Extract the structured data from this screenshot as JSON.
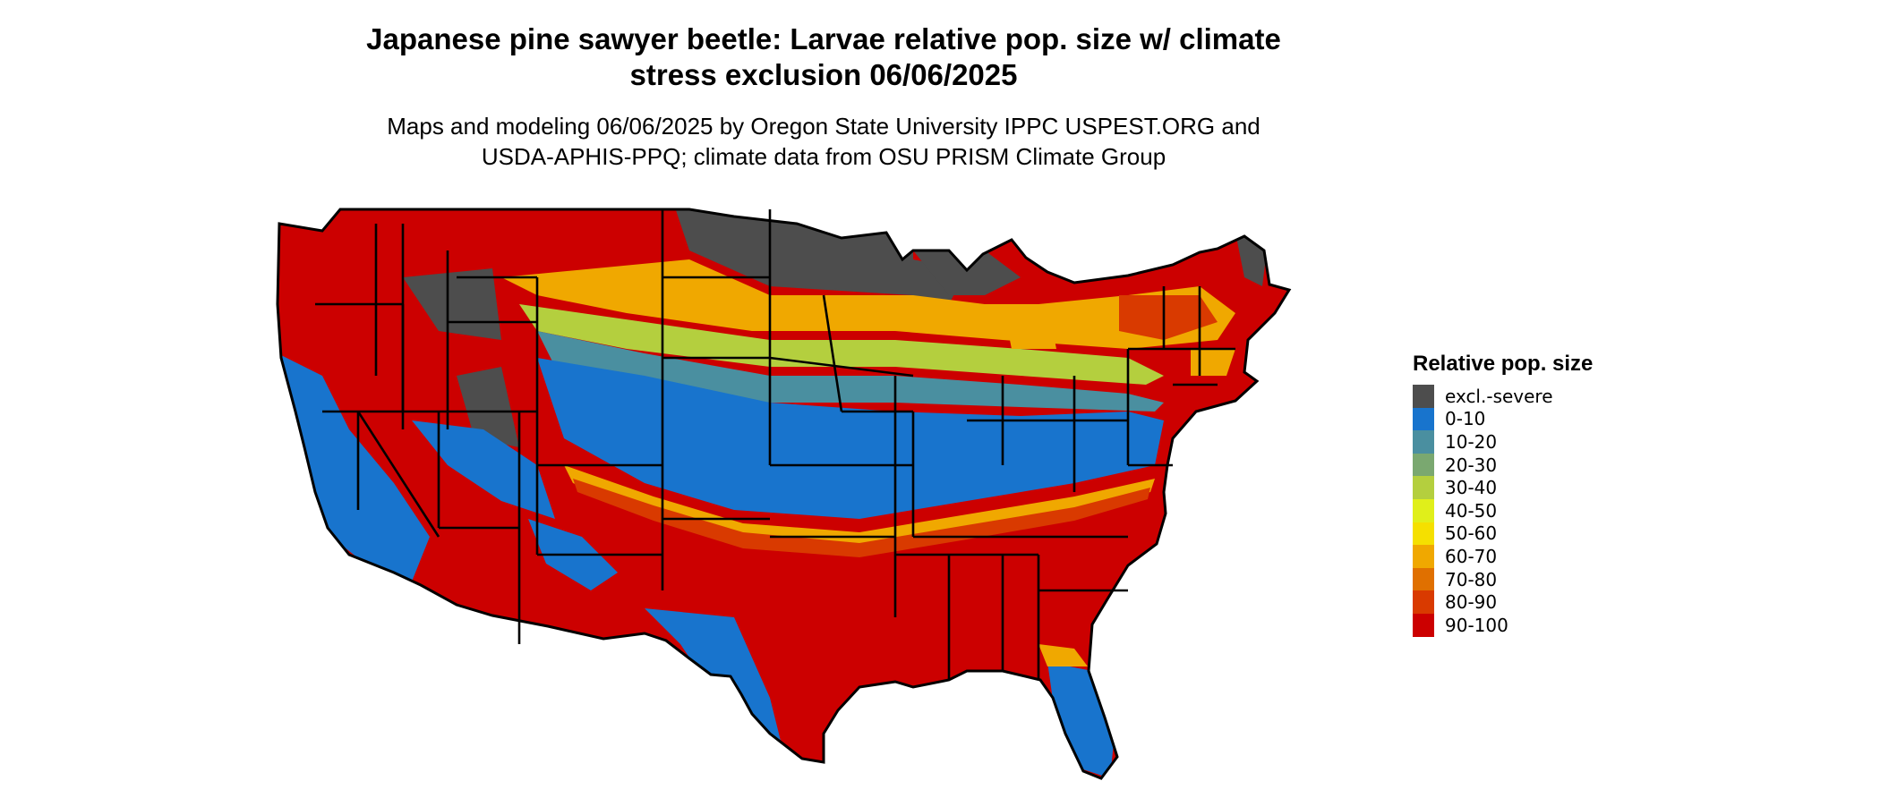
{
  "title_line1": "Japanese pine sawyer beetle: Larvae relative pop. size w/ climate",
  "title_line2": "stress exclusion 06/06/2025",
  "subtitle_line1": "Maps and modeling 06/06/2025 by Oregon State University IPPC USPEST.ORG and",
  "subtitle_line2": "USDA-APHIS-PPQ; climate data from OSU PRISM Climate Group",
  "legend": {
    "title": "Relative pop. size",
    "items": [
      {
        "label": "excl.-severe",
        "color": "#4d4d4d"
      },
      {
        "label": "0-10",
        "color": "#1874cd"
      },
      {
        "label": "10-20",
        "color": "#4a8fa0"
      },
      {
        "label": "20-30",
        "color": "#7aa870"
      },
      {
        "label": "30-40",
        "color": "#b4cf3e"
      },
      {
        "label": "40-50",
        "color": "#e0ef1a"
      },
      {
        "label": "50-60",
        "color": "#f5e000"
      },
      {
        "label": "60-70",
        "color": "#f0a800"
      },
      {
        "label": "70-80",
        "color": "#e07000"
      },
      {
        "label": "80-90",
        "color": "#d93a00"
      },
      {
        "label": "90-100",
        "color": "#cc0000"
      }
    ]
  },
  "map": {
    "region": "contiguous-united-states",
    "border_color": "#000000"
  }
}
